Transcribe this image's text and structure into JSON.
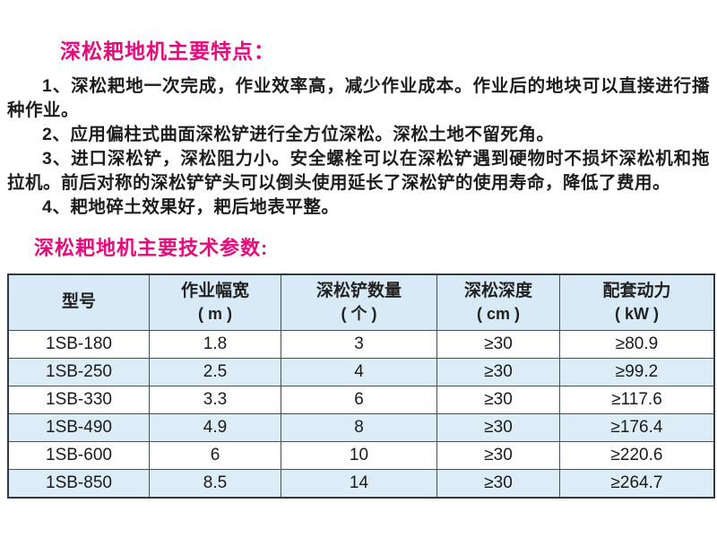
{
  "colors": {
    "accent_pink": "#e60b7a",
    "table_header_bg": "#d7eaf6",
    "table_stripe_bg": "#dcedf8",
    "table_border": "#44505a",
    "body_text": "#1d1d1d"
  },
  "sections": {
    "features": {
      "heading": "深松耙地机主要特点：",
      "items": [
        "1、深松耙地一次完成，作业效率高，减少作业成本。作业后的地块可以直接进行播种作业。",
        "2、应用偏柱式曲面深松铲进行全方位深松。深松土地不留死角。",
        "3、进口深松铲，深松阻力小。安全螺栓可以在深松铲遇到硬物时不损坏深松机和拖拉机。前后对称的深松铲铲头可以倒头使用延长了深松铲的使用寿命，降低了费用。",
        "4、耙地碎土效果好，耙后地表平整。"
      ]
    },
    "parameters": {
      "heading": "深松耙地机主要技术参数:"
    }
  },
  "table": {
    "columns": [
      {
        "label": "型号",
        "unit": ""
      },
      {
        "label": "作业幅宽",
        "unit": "( m )"
      },
      {
        "label": "深松铲数量",
        "unit": "( 个 )"
      },
      {
        "label": "深松深度",
        "unit": "( cm )"
      },
      {
        "label": "配套动力",
        "unit": "( kW )"
      }
    ],
    "rows": [
      {
        "model": "1SB-180",
        "width_m": "1.8",
        "shovels": "3",
        "depth_cm": "≥30",
        "power_kw": "≥80.9"
      },
      {
        "model": "1SB-250",
        "width_m": "2.5",
        "shovels": "4",
        "depth_cm": "≥30",
        "power_kw": "≥99.2"
      },
      {
        "model": "1SB-330",
        "width_m": "3.3",
        "shovels": "6",
        "depth_cm": "≥30",
        "power_kw": "≥117.6"
      },
      {
        "model": "1SB-490",
        "width_m": "4.9",
        "shovels": "8",
        "depth_cm": "≥30",
        "power_kw": "≥176.4"
      },
      {
        "model": "1SB-600",
        "width_m": "6",
        "shovels": "10",
        "depth_cm": "≥30",
        "power_kw": "≥220.6"
      },
      {
        "model": "1SB-850",
        "width_m": "8.5",
        "shovels": "14",
        "depth_cm": "≥30",
        "power_kw": "≥264.7"
      }
    ]
  }
}
